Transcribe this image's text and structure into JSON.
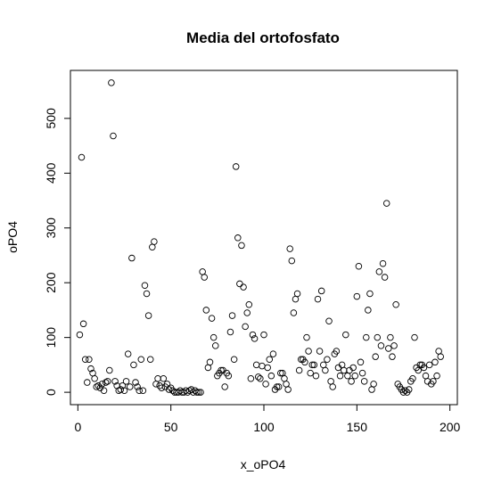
{
  "chart_data": {
    "type": "scatter",
    "title": "Media del ortofosfato",
    "xlabel": "x_oPO4",
    "ylabel": "oPO4",
    "xlim": [
      -4,
      204
    ],
    "ylim": [
      -22.6,
      587.6
    ],
    "xticks": [
      0,
      50,
      100,
      150,
      200
    ],
    "yticks": [
      0,
      100,
      200,
      300,
      400,
      500
    ],
    "grid": false,
    "y": [
      105,
      429,
      125,
      60,
      18,
      60,
      43,
      35,
      25,
      10,
      12,
      8,
      15,
      3,
      18,
      20,
      40,
      565,
      468,
      20,
      12,
      3,
      5,
      12,
      3,
      20,
      70,
      10,
      245,
      50,
      18,
      10,
      3,
      60,
      3,
      195,
      180,
      140,
      60,
      265,
      275,
      15,
      25,
      12,
      8,
      25,
      10,
      15,
      5,
      8,
      3,
      0,
      0,
      0,
      3,
      0,
      0,
      3,
      0,
      3,
      5,
      0,
      3,
      0,
      0,
      0,
      220,
      210,
      150,
      45,
      55,
      135,
      100,
      85,
      30,
      35,
      40,
      40,
      10,
      35,
      30,
      110,
      140,
      60,
      412,
      282,
      198,
      268,
      192,
      120,
      145,
      160,
      25,
      105,
      98,
      50,
      28,
      25,
      48,
      105,
      15,
      45,
      60,
      30,
      70,
      5,
      10,
      10,
      35,
      35,
      25,
      15,
      5,
      262,
      240,
      145,
      170,
      180,
      40,
      60,
      60,
      55,
      100,
      75,
      35,
      50,
      50,
      30,
      170,
      75,
      185,
      50,
      40,
      60,
      130,
      20,
      10,
      70,
      75,
      45,
      30,
      50,
      40,
      105,
      30,
      40,
      20,
      45,
      30,
      175,
      230,
      55,
      35,
      20,
      100,
      150,
      180,
      5,
      15,
      65,
      100,
      220,
      85,
      235,
      210,
      345,
      80,
      100,
      65,
      85,
      160,
      15,
      10,
      5,
      0,
      3,
      0,
      5,
      20,
      25,
      100,
      45,
      40,
      50,
      50,
      45,
      30,
      20,
      50,
      15,
      20,
      55,
      30,
      75,
      65
    ]
  }
}
